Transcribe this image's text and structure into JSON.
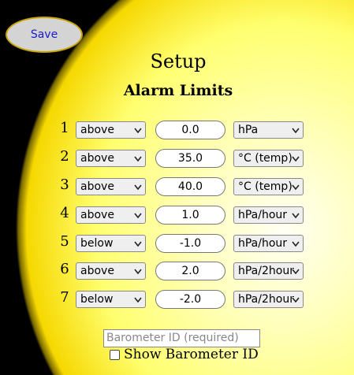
{
  "header": {
    "save_button": "Save",
    "title": "Setup",
    "subtitle": "Alarm Limits"
  },
  "rows": [
    {
      "number": "1",
      "condition": "above",
      "value": "0.0",
      "unit": "hPa"
    },
    {
      "number": "2",
      "condition": "above",
      "value": "35.0",
      "unit": "°C (temp)"
    },
    {
      "number": "3",
      "condition": "above",
      "value": "40.0",
      "unit": "°C (temp)"
    },
    {
      "number": "4",
      "condition": "above",
      "value": "1.0",
      "unit": "hPa/hour"
    },
    {
      "number": "5",
      "condition": "below",
      "value": "-1.0",
      "unit": "hPa/hour"
    },
    {
      "number": "6",
      "condition": "above",
      "value": "2.0",
      "unit": "hPa/2hour"
    },
    {
      "number": "7",
      "condition": "below",
      "value": "-2.0",
      "unit": "hPa/2hour"
    }
  ],
  "barometer": {
    "placeholder": "Barometer ID (required)",
    "checkbox_label": "Show Barometer ID"
  }
}
